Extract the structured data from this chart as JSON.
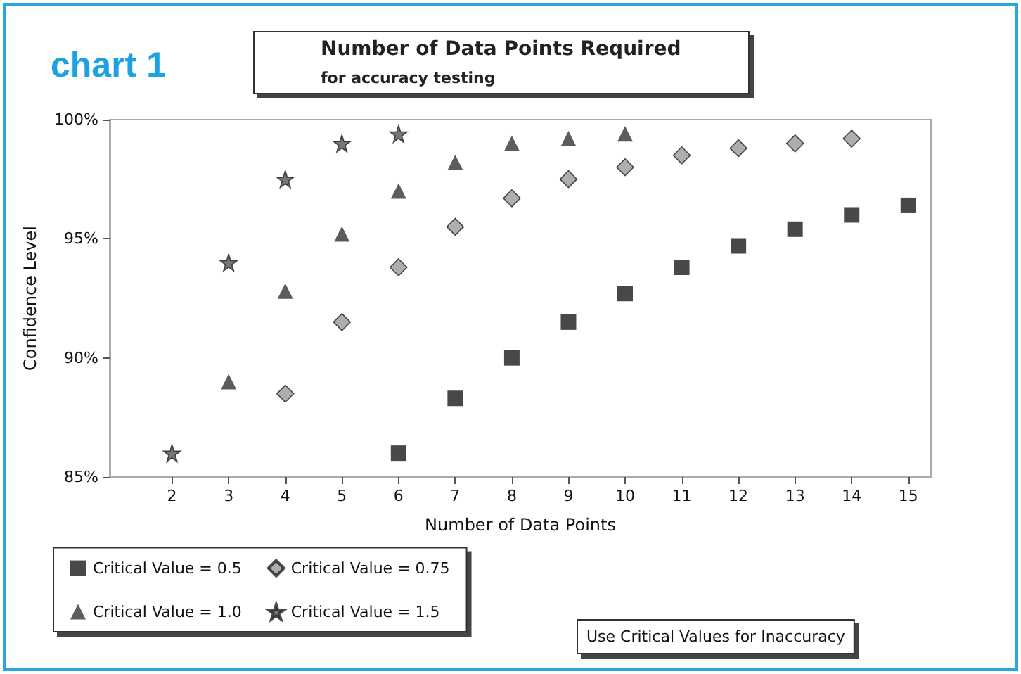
{
  "chart_data": {
    "type": "scatter",
    "title": "Number of Data Points Required",
    "subtitle": "for accuracy testing",
    "xlabel": "Number of Data Points",
    "ylabel": "Confidence Level",
    "annotations": [
      "chart 1",
      "Use Critical Values for Inaccuracy"
    ],
    "xlim": [
      0.9,
      15.4
    ],
    "xticks": [
      2,
      3,
      4,
      5,
      6,
      7,
      8,
      9,
      10,
      11,
      12,
      13,
      14,
      15
    ],
    "ylim": [
      85,
      100
    ],
    "yticks": [
      {
        "value": 85,
        "label": "85%"
      },
      {
        "value": 90,
        "label": "90%"
      },
      {
        "value": 95,
        "label": "95%"
      },
      {
        "value": 100,
        "label": "100%"
      }
    ],
    "grid": false,
    "legend": "bottom left",
    "series": [
      {
        "name": "Critical Value = 0.5",
        "color": "#1a1a1a",
        "marker": "square",
        "x": [
          6,
          7,
          8,
          9,
          10,
          11,
          12,
          13,
          14,
          15
        ],
        "values": [
          86.0,
          88.3,
          90.0,
          91.5,
          92.7,
          93.8,
          94.7,
          95.4,
          96.0,
          96.4
        ]
      },
      {
        "name": "Critical Value = 0.75",
        "color": "#9a9a9a",
        "marker": "diamond",
        "x": [
          4,
          5,
          6,
          7,
          8,
          9,
          10,
          11,
          12,
          13,
          14
        ],
        "values": [
          88.5,
          91.5,
          93.8,
          95.5,
          96.7,
          97.5,
          98.0,
          98.5,
          98.8,
          99.0,
          99.2
        ]
      },
      {
        "name": "Critical Value = 1.0",
        "color": "#333333",
        "marker": "triangle",
        "x": [
          3,
          4,
          5,
          6,
          7,
          8,
          9,
          10
        ],
        "values": [
          89.0,
          92.8,
          95.2,
          97.0,
          98.2,
          99.0,
          99.2,
          99.4
        ]
      },
      {
        "name": "Critical Value = 1.5",
        "color": "#555555",
        "marker": "star",
        "x": [
          2,
          3,
          4,
          5,
          6
        ],
        "values": [
          86.0,
          94.0,
          97.5,
          99.0,
          99.4
        ]
      }
    ]
  }
}
